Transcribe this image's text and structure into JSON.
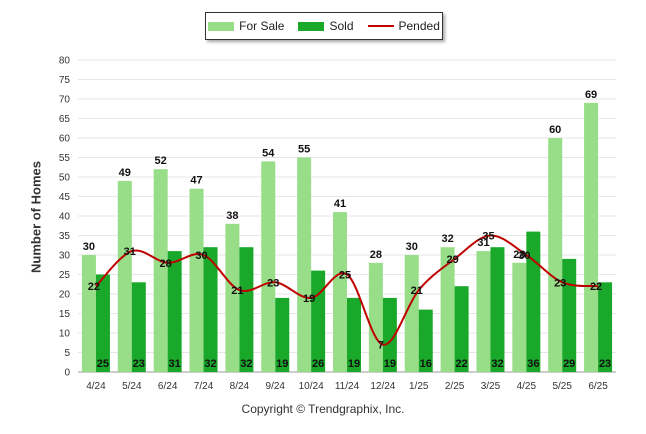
{
  "chart_data": {
    "type": "bar",
    "categories": [
      "4/24",
      "5/24",
      "6/24",
      "7/24",
      "8/24",
      "9/24",
      "10/24",
      "11/24",
      "12/24",
      "1/25",
      "2/25",
      "3/25",
      "4/25",
      "5/25",
      "6/25"
    ],
    "series": [
      {
        "name": "For Sale",
        "type": "bar",
        "color": "#98dd88",
        "values": [
          30,
          49,
          52,
          47,
          38,
          54,
          55,
          41,
          28,
          30,
          32,
          31,
          28,
          60,
          69
        ]
      },
      {
        "name": "Sold",
        "type": "bar",
        "color": "#1aa82a",
        "values": [
          25,
          23,
          31,
          32,
          32,
          19,
          26,
          19,
          19,
          16,
          22,
          32,
          36,
          29,
          23
        ]
      },
      {
        "name": "Pended",
        "type": "line",
        "color": "#c00000",
        "values": [
          22,
          31,
          28,
          30,
          21,
          23,
          19,
          25,
          7,
          21,
          29,
          35,
          30,
          23,
          22
        ]
      }
    ],
    "title": "",
    "xlabel": "",
    "ylabel": "Number of Homes",
    "ylim": [
      0,
      80
    ],
    "yticks": [
      0,
      5,
      10,
      15,
      20,
      25,
      30,
      35,
      40,
      45,
      50,
      55,
      60,
      65,
      70,
      75,
      80
    ],
    "grid": true,
    "legend_position": "top"
  },
  "footer": {
    "copyright": "Copyright © Trendgraphix, Inc."
  }
}
